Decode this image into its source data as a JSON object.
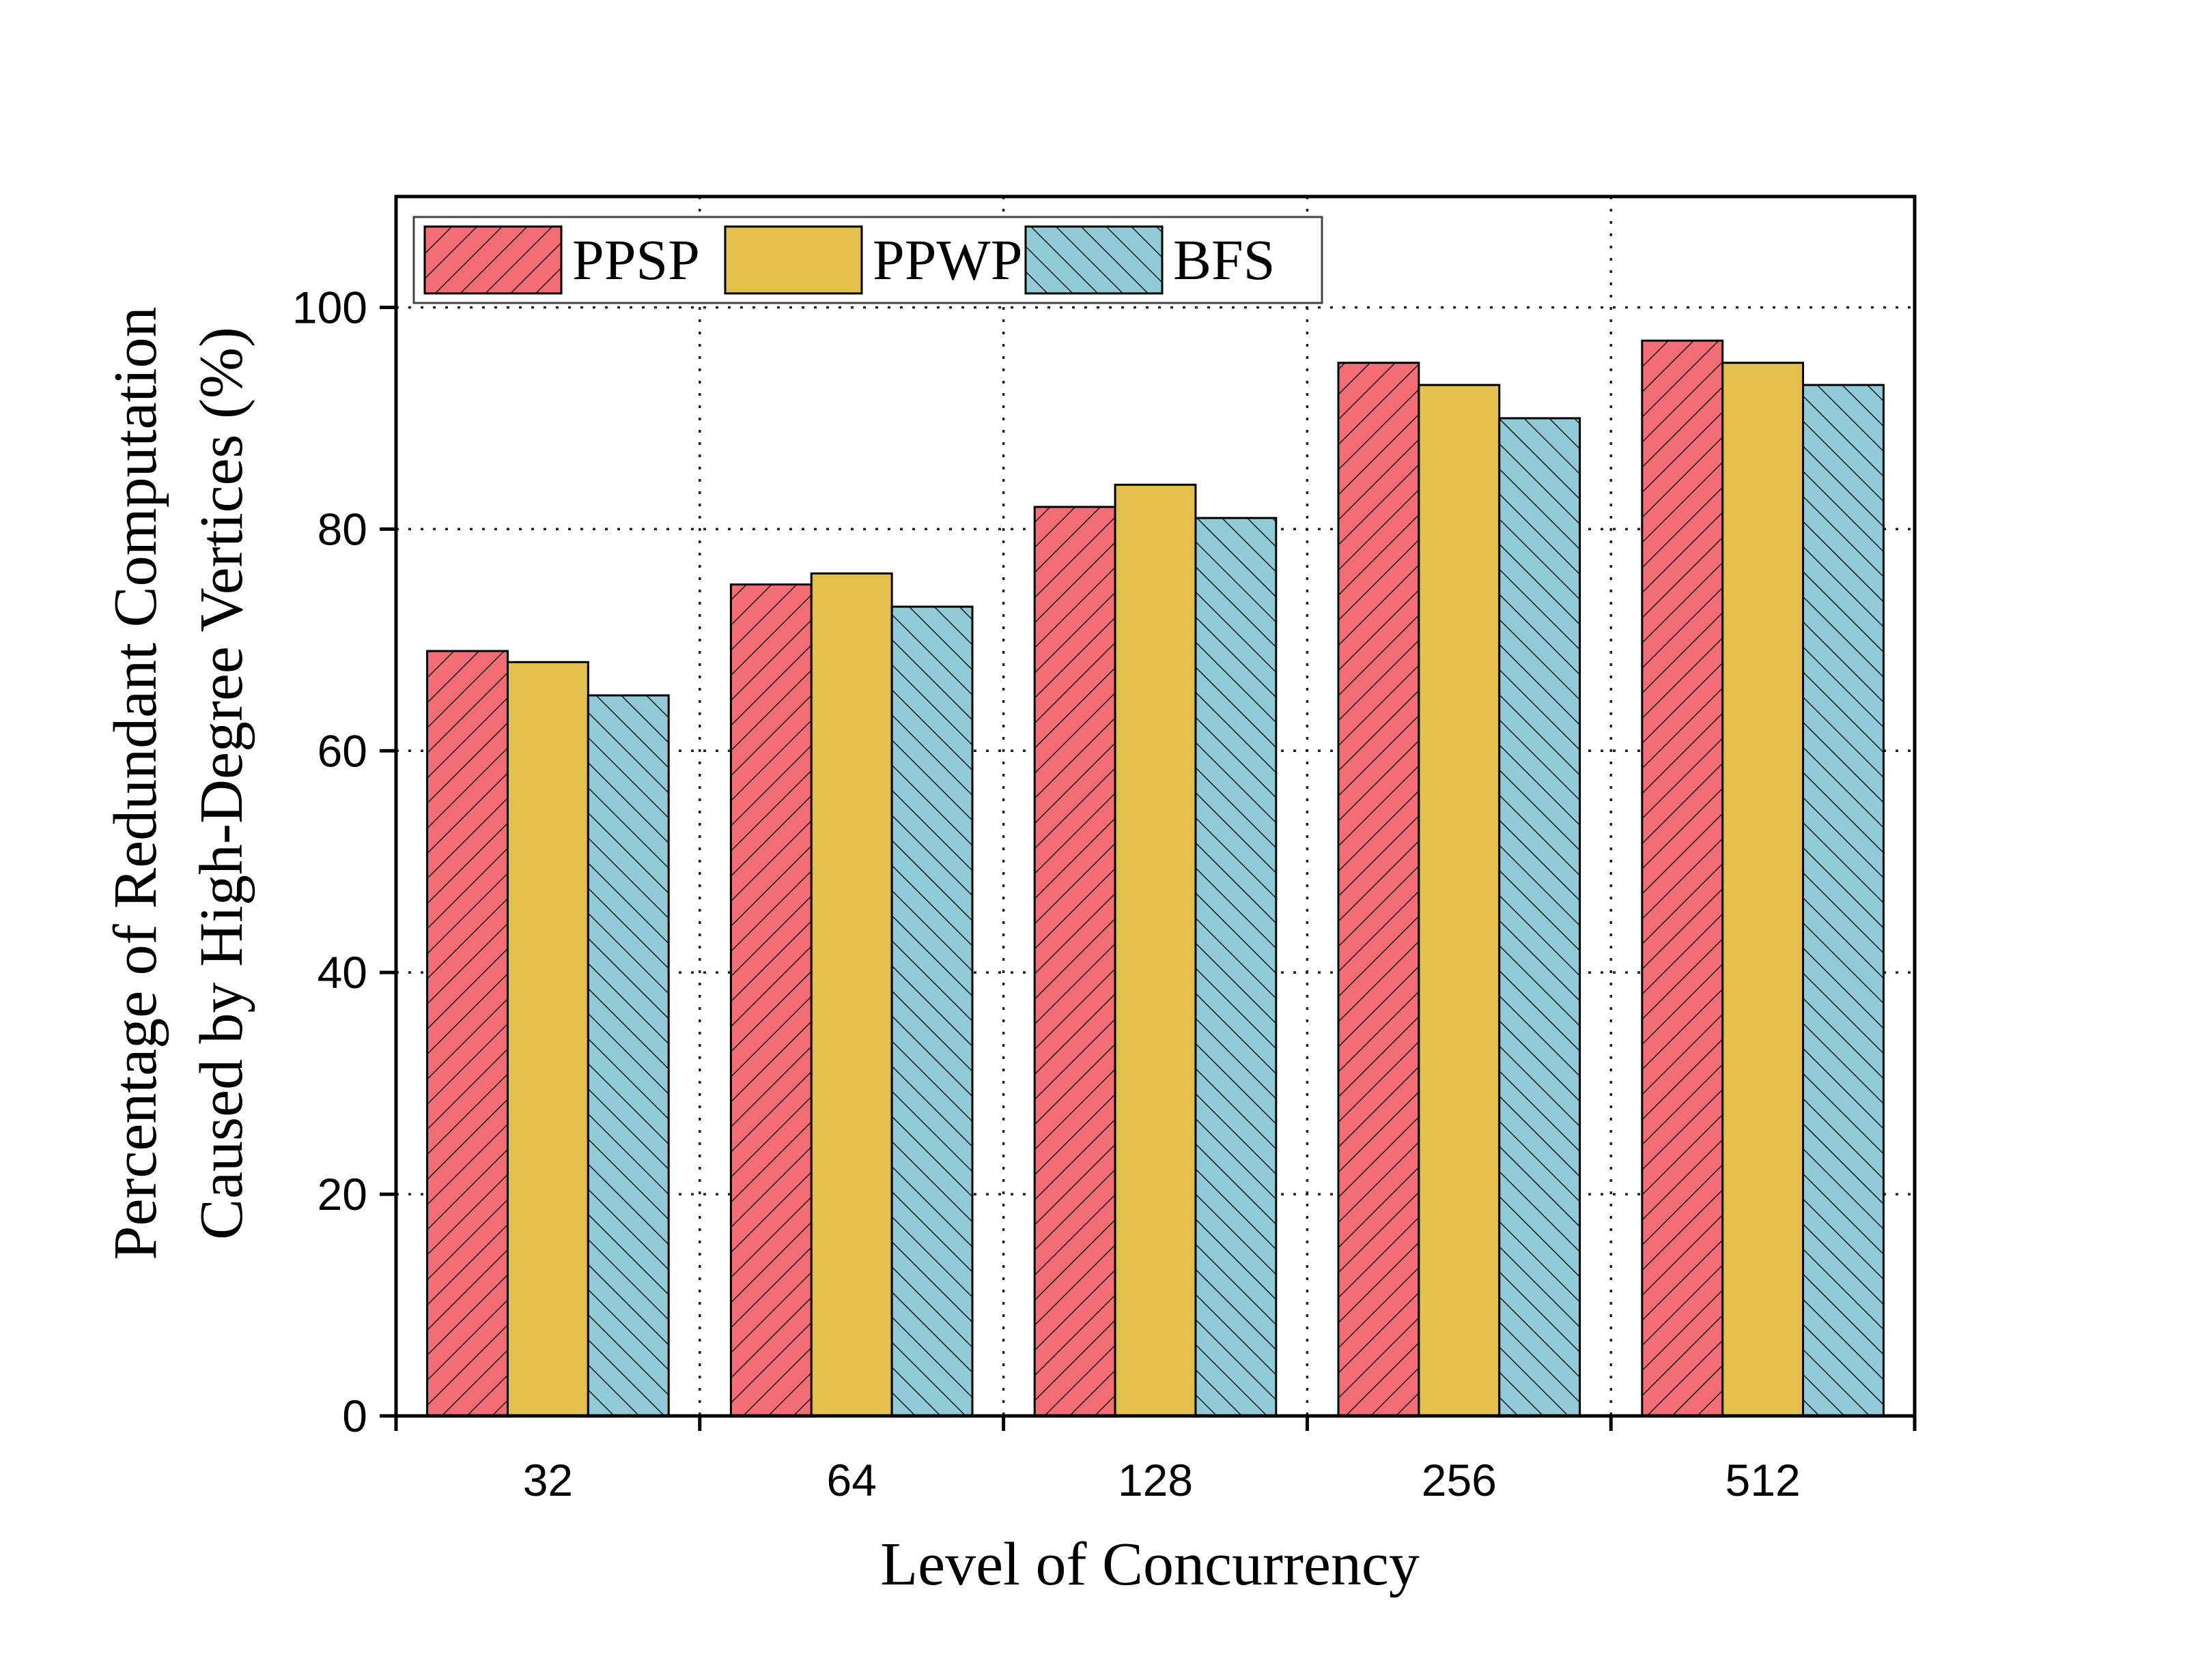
{
  "chart_data": {
    "type": "bar",
    "categories": [
      "32",
      "64",
      "128",
      "256",
      "512"
    ],
    "series": [
      {
        "name": "PPSP",
        "values": [
          69,
          75,
          82,
          95,
          97
        ],
        "color": "#f36d76",
        "hatch": "forward"
      },
      {
        "name": "PPWP",
        "values": [
          68,
          76,
          84,
          93,
          95
        ],
        "color": "#e3c04e",
        "hatch": "none"
      },
      {
        "name": "BFS",
        "values": [
          65,
          73,
          81,
          90,
          93
        ],
        "color": "#92cbd8",
        "hatch": "backward"
      }
    ],
    "xlabel": "Level of Concurrency",
    "ylabel_lines": [
      "Percentage of Redundant Computation",
      "Caused by High-Degree Vertices (%)"
    ],
    "ylim": [
      0,
      110
    ],
    "yticks": [
      0,
      20,
      40,
      60,
      80,
      100
    ],
    "grid": true,
    "grid_style": "dotted",
    "legend_position": "top-left"
  }
}
